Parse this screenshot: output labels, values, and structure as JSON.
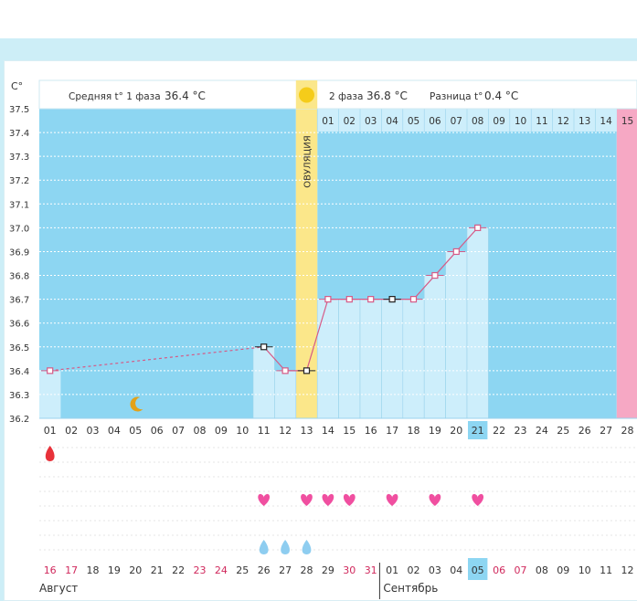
{
  "header": {
    "unit_label": "C°",
    "phase1_label": "Средняя t° 1 фаза",
    "phase1_value": "36.4 °C",
    "phase2_label": "2 фаза",
    "phase2_value": "36.8 °C",
    "diff_label": "Разница t°",
    "diff_value": "0.4 °C",
    "ovulation_label": "ОВУЛЯЦИЯ"
  },
  "colors": {
    "phase1_bg": "#8dd6f2",
    "phase2_bg": "#cdeefb",
    "ovulation_band": "#fbe78a",
    "grid": "#ffffff",
    "line": "#d65a86",
    "heart": "#f04fa0",
    "drop": "#e8323a",
    "drop_blue": "#8ecdf0",
    "weekend_text": "#d0285c",
    "highlight": "#8dd6f2",
    "end_column": "#f6a8c4"
  },
  "phase2_day_numbers": [
    "01",
    "02",
    "03",
    "04",
    "05",
    "06",
    "07",
    "08",
    "09",
    "10",
    "11",
    "12",
    "13",
    "14",
    "15"
  ],
  "cycle_days": [
    "01",
    "02",
    "03",
    "04",
    "05",
    "06",
    "07",
    "08",
    "09",
    "10",
    "11",
    "12",
    "13",
    "14",
    "15",
    "16",
    "17",
    "18",
    "19",
    "20",
    "21",
    "22",
    "23",
    "24",
    "25",
    "26",
    "27",
    "28"
  ],
  "highlighted_cycle_day": "21",
  "calendar_dates": [
    "16",
    "17",
    "18",
    "19",
    "20",
    "21",
    "22",
    "23",
    "24",
    "25",
    "26",
    "27",
    "28",
    "29",
    "30",
    "31",
    "01",
    "02",
    "03",
    "04",
    "05",
    "06",
    "07",
    "08",
    "09",
    "10",
    "11",
    "12"
  ],
  "calendar_red_dates": [
    "16",
    "17",
    "23",
    "24",
    "30",
    "31",
    "06",
    "07"
  ],
  "highlighted_calendar_date": "05",
  "months": {
    "first": "Август",
    "second": "Сентябрь"
  },
  "markers": {
    "menstruation_drop_days": [
      1
    ],
    "heart_days": [
      11,
      13,
      14,
      15,
      17,
      19,
      21
    ],
    "blue_drop_days": [
      11,
      12,
      13
    ],
    "moon_day": 5,
    "sun_label_day": 13
  },
  "chart_data": {
    "type": "line",
    "ylabel": "C°",
    "ylim": [
      36.2,
      37.5
    ],
    "yticks": [
      "36.2",
      "36.3",
      "36.4",
      "36.5",
      "36.6",
      "36.7",
      "36.8",
      "36.9",
      "37.0",
      "37.1",
      "37.2",
      "37.3",
      "37.4",
      "37.5"
    ],
    "x": [
      1,
      11,
      12,
      13,
      14,
      15,
      16,
      17,
      18,
      19,
      20,
      21
    ],
    "y": [
      36.4,
      36.5,
      36.4,
      36.4,
      36.7,
      36.7,
      36.7,
      36.7,
      36.7,
      36.8,
      36.9,
      37.0
    ],
    "dashed_between": [
      1,
      11
    ],
    "ovulation_day": 13,
    "phase1_mean": 36.4,
    "phase2_mean": 36.8
  }
}
